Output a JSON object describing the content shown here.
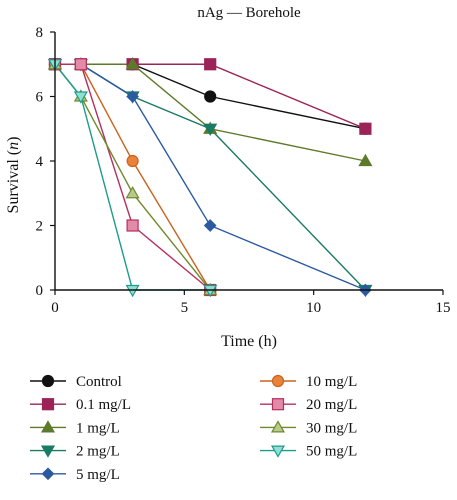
{
  "chart_data": {
    "type": "line",
    "title": "nAg — Borehole",
    "xlabel": "Time (h)",
    "ylabel_prefix": "Survival (",
    "ylabel_var": "n",
    "ylabel_suffix": ")",
    "xlim": [
      0,
      15
    ],
    "ylim": [
      0,
      8
    ],
    "xticks": [
      0,
      5,
      10,
      15
    ],
    "yticks": [
      0,
      2,
      4,
      6,
      8
    ],
    "grid": false,
    "legend_position": "bottom",
    "series": [
      {
        "name": "Control",
        "color": "#111111",
        "marker": "circle",
        "x": [
          0,
          1,
          3,
          6,
          12
        ],
        "y": [
          7,
          7,
          7,
          6,
          5
        ]
      },
      {
        "name": "0.1 mg/L",
        "color": "#9b2358",
        "marker": "square",
        "x": [
          0,
          1,
          3,
          6,
          12
        ],
        "y": [
          7,
          7,
          7,
          7,
          5
        ]
      },
      {
        "name": "1 mg/L",
        "color": "#5d7a2b",
        "marker": "triangle",
        "x": [
          0,
          1,
          3,
          6,
          12
        ],
        "y": [
          7,
          7,
          7,
          5,
          4
        ]
      },
      {
        "name": "2 mg/L",
        "color": "#1a7a63",
        "marker": "triangle-down",
        "x": [
          0,
          1,
          3,
          6,
          12
        ],
        "y": [
          7,
          7,
          6,
          5,
          0
        ]
      },
      {
        "name": "5 mg/L",
        "color": "#2c5aa0",
        "marker": "diamond",
        "x": [
          0,
          1,
          3,
          6,
          12
        ],
        "y": [
          7,
          7,
          6,
          2,
          0
        ]
      },
      {
        "name": "10 mg/L",
        "color": "#e9823a",
        "stroke": "#c8641d",
        "marker": "circle-open",
        "x": [
          0,
          1,
          3,
          6
        ],
        "y": [
          7,
          7,
          4,
          0
        ]
      },
      {
        "name": "20 mg/L",
        "color": "#e38aa8",
        "stroke": "#b5305f",
        "marker": "square-open",
        "x": [
          0,
          1,
          3,
          6
        ],
        "y": [
          7,
          7,
          2,
          0
        ]
      },
      {
        "name": "30 mg/L",
        "color": "#b9c98a",
        "stroke": "#6f8a2e",
        "marker": "triangle-open",
        "x": [
          0,
          1,
          3,
          6
        ],
        "y": [
          7,
          6,
          3,
          0
        ]
      },
      {
        "name": "50 mg/L",
        "color": "#8fe0d4",
        "stroke": "#1f9b8c",
        "marker": "triangle-down-open",
        "x": [
          0,
          1,
          3,
          6
        ],
        "y": [
          7,
          6,
          0,
          0
        ]
      }
    ]
  }
}
